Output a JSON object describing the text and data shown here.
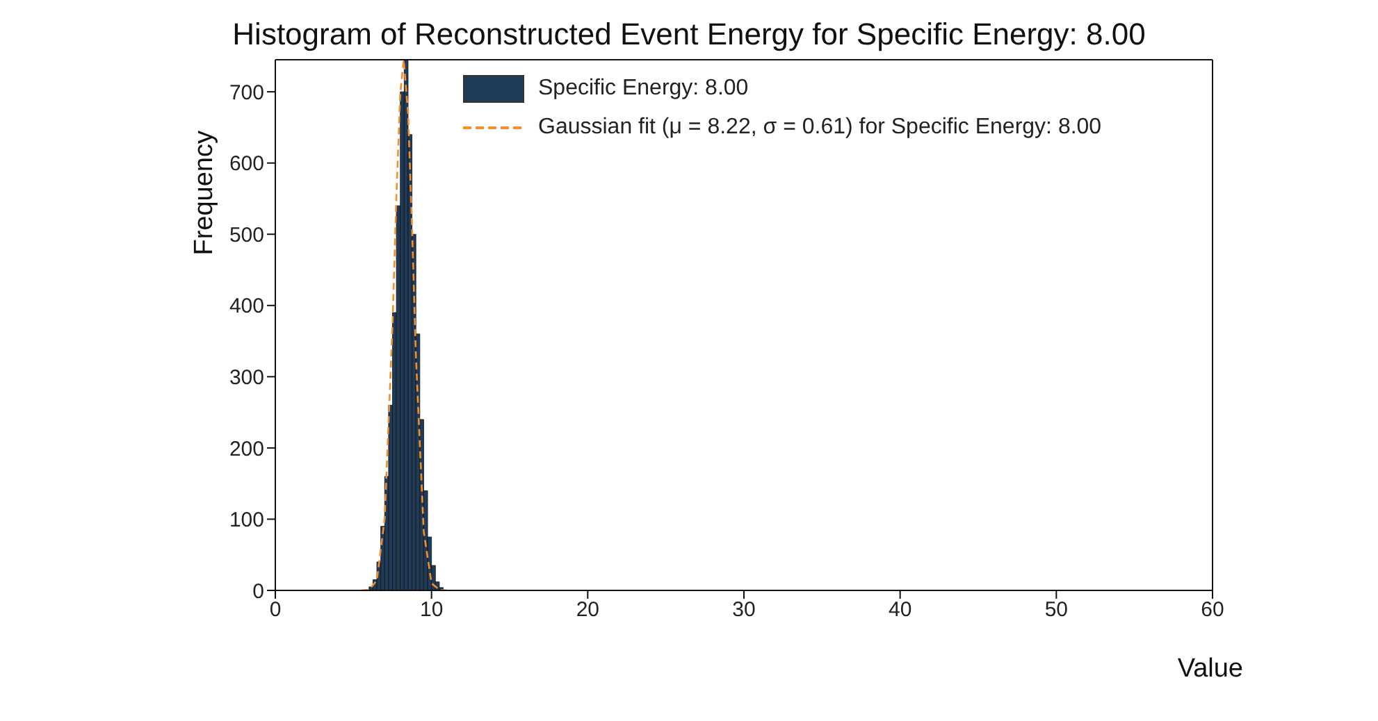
{
  "chart_data": {
    "type": "histogram",
    "title": "Histogram of Reconstructed Event Energy for Specific Energy: 8.00",
    "xlabel": "Value",
    "ylabel": "Frequency",
    "bins": [
      6.0,
      6.25,
      6.5,
      6.75,
      7.0,
      7.25,
      7.5,
      7.75,
      8.0,
      8.25,
      8.5,
      8.75,
      9.0,
      9.25,
      9.5,
      9.75,
      10.0,
      10.25,
      10.5,
      10.75
    ],
    "series": [
      {
        "name": "Specific Energy: 8.00",
        "color": "#1f3b57",
        "values": [
          5,
          15,
          40,
          90,
          160,
          260,
          390,
          540,
          700,
          745,
          640,
          500,
          360,
          240,
          140,
          75,
          35,
          12,
          4
        ]
      },
      {
        "name": "Gaussian fit (μ = 8.22, σ = 0.61) for Specific Energy: 8.00",
        "type": "line",
        "line_style": "dashed",
        "color": "#f28e2b",
        "x": [
          5.5,
          6.0,
          6.5,
          7.0,
          7.5,
          7.75,
          8.0,
          8.22,
          8.5,
          8.75,
          9.0,
          9.5,
          10.0,
          10.5,
          11.0
        ],
        "values": [
          0,
          1,
          14,
          101,
          371,
          553,
          698,
          745,
          670,
          511,
          329,
          83,
          10,
          1,
          0
        ]
      }
    ],
    "xlim": [
      0,
      60
    ],
    "xticks": [
      0,
      10,
      20,
      30,
      40,
      50,
      60
    ],
    "ylim": [
      0,
      745
    ],
    "yticks": [
      0,
      100,
      200,
      300,
      400,
      500,
      600,
      700
    ],
    "legend": "top",
    "grid": false
  }
}
